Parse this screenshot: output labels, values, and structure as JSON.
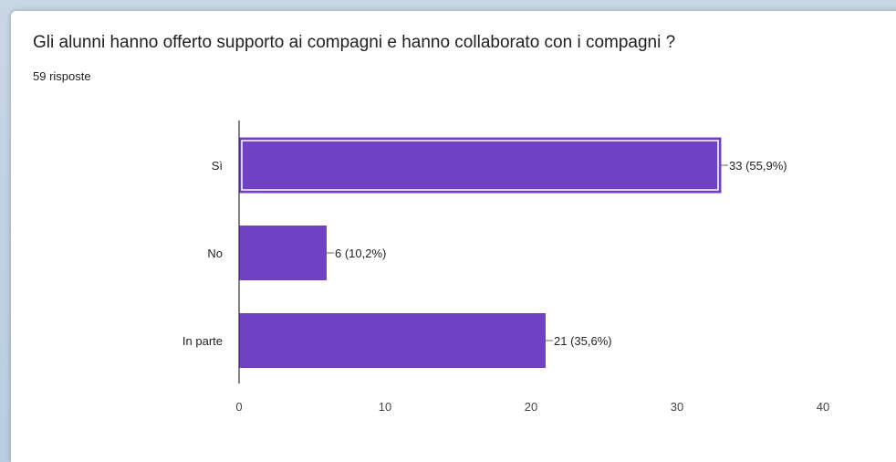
{
  "question": {
    "title": "Gli alunni hanno offerto supporto ai compagni e hanno collaborato con i compagni ?",
    "responses": "59 risposte"
  },
  "colors": {
    "bar": "#7141c4",
    "selected_outline": "#ffffff",
    "axis": "#333333",
    "leader": "#666666"
  },
  "chart_data": {
    "type": "bar",
    "orientation": "horizontal",
    "categories": [
      "Sì",
      "No",
      "In parte"
    ],
    "values": [
      33,
      6,
      21
    ],
    "value_labels": [
      "33 (55,9%)",
      "6 (10,2%)",
      "21 (35,6%)"
    ],
    "xlim": [
      0,
      40
    ],
    "xticks": [
      0,
      10,
      20,
      30,
      40
    ],
    "selected_index": 0,
    "grid": false
  }
}
